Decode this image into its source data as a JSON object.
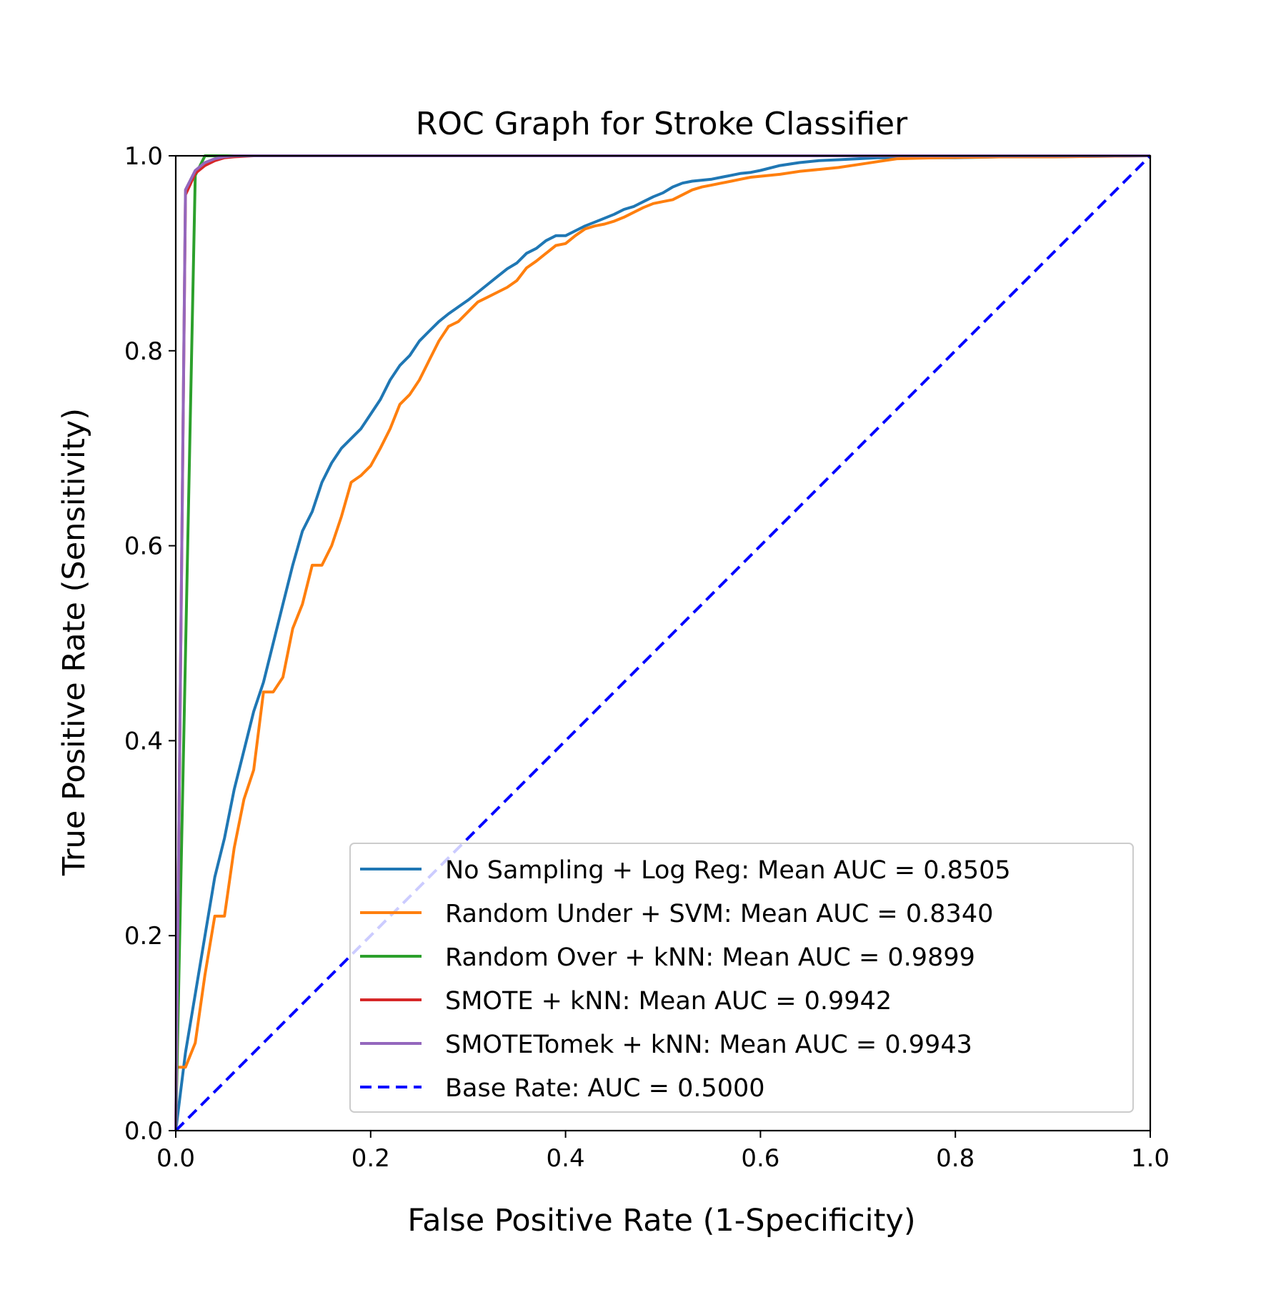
{
  "chart_data": {
    "type": "line",
    "title": "ROC Graph for Stroke Classifier",
    "xlabel": "False Positive Rate (1-Specificity)",
    "ylabel": "True Positive Rate (Sensitivity)",
    "xlim": [
      0.0,
      1.0
    ],
    "ylim": [
      0.0,
      1.0
    ],
    "xticks": [
      "0.0",
      "0.2",
      "0.4",
      "0.6",
      "0.8",
      "1.0"
    ],
    "yticks": [
      "0.0",
      "0.2",
      "0.4",
      "0.6",
      "0.8",
      "1.0"
    ],
    "grid": false,
    "legend_position": "lower-right",
    "series": [
      {
        "name": "No Sampling + Log Reg: Mean AUC = 0.8505",
        "color": "#1f77b4",
        "style": "solid",
        "x": [
          0.0,
          0.01,
          0.02,
          0.03,
          0.04,
          0.05,
          0.06,
          0.07,
          0.08,
          0.09,
          0.1,
          0.11,
          0.12,
          0.13,
          0.14,
          0.15,
          0.16,
          0.17,
          0.18,
          0.19,
          0.2,
          0.21,
          0.22,
          0.23,
          0.24,
          0.25,
          0.26,
          0.27,
          0.28,
          0.29,
          0.3,
          0.31,
          0.32,
          0.33,
          0.34,
          0.35,
          0.36,
          0.37,
          0.38,
          0.39,
          0.4,
          0.41,
          0.42,
          0.43,
          0.44,
          0.45,
          0.46,
          0.47,
          0.48,
          0.49,
          0.5,
          0.51,
          0.52,
          0.53,
          0.54,
          0.55,
          0.56,
          0.57,
          0.58,
          0.59,
          0.6,
          0.62,
          0.64,
          0.66,
          0.68,
          0.7,
          0.72,
          0.75,
          0.8,
          0.85,
          0.9,
          1.0
        ],
        "y": [
          0.0,
          0.08,
          0.14,
          0.2,
          0.26,
          0.3,
          0.35,
          0.39,
          0.43,
          0.46,
          0.5,
          0.54,
          0.58,
          0.615,
          0.635,
          0.665,
          0.685,
          0.7,
          0.71,
          0.72,
          0.735,
          0.75,
          0.77,
          0.785,
          0.795,
          0.81,
          0.82,
          0.83,
          0.838,
          0.845,
          0.852,
          0.86,
          0.868,
          0.876,
          0.884,
          0.89,
          0.9,
          0.905,
          0.913,
          0.918,
          0.918,
          0.923,
          0.928,
          0.932,
          0.936,
          0.94,
          0.945,
          0.948,
          0.953,
          0.958,
          0.962,
          0.968,
          0.972,
          0.974,
          0.975,
          0.976,
          0.978,
          0.98,
          0.982,
          0.983,
          0.985,
          0.99,
          0.993,
          0.995,
          0.996,
          0.997,
          0.998,
          0.998,
          0.998,
          0.999,
          0.999,
          1.0
        ]
      },
      {
        "name": "Random Under + SVM: Mean AUC = 0.8340",
        "color": "#ff7f0e",
        "style": "solid",
        "x": [
          0.0,
          0.01,
          0.02,
          0.03,
          0.04,
          0.05,
          0.06,
          0.07,
          0.08,
          0.09,
          0.1,
          0.11,
          0.12,
          0.13,
          0.14,
          0.15,
          0.16,
          0.17,
          0.18,
          0.19,
          0.2,
          0.21,
          0.22,
          0.23,
          0.24,
          0.25,
          0.26,
          0.27,
          0.28,
          0.29,
          0.3,
          0.31,
          0.32,
          0.33,
          0.34,
          0.35,
          0.36,
          0.37,
          0.38,
          0.39,
          0.4,
          0.41,
          0.42,
          0.43,
          0.44,
          0.45,
          0.46,
          0.47,
          0.48,
          0.49,
          0.5,
          0.51,
          0.52,
          0.53,
          0.54,
          0.55,
          0.56,
          0.57,
          0.58,
          0.59,
          0.6,
          0.62,
          0.64,
          0.66,
          0.68,
          0.7,
          0.72,
          0.74,
          0.78,
          0.85,
          0.9,
          1.0
        ],
        "y": [
          0.065,
          0.065,
          0.09,
          0.16,
          0.22,
          0.22,
          0.29,
          0.34,
          0.37,
          0.45,
          0.45,
          0.465,
          0.515,
          0.54,
          0.58,
          0.58,
          0.6,
          0.63,
          0.665,
          0.672,
          0.682,
          0.7,
          0.72,
          0.745,
          0.755,
          0.77,
          0.79,
          0.81,
          0.825,
          0.83,
          0.84,
          0.85,
          0.855,
          0.86,
          0.865,
          0.872,
          0.885,
          0.892,
          0.9,
          0.908,
          0.91,
          0.918,
          0.925,
          0.928,
          0.93,
          0.933,
          0.937,
          0.942,
          0.947,
          0.951,
          0.953,
          0.955,
          0.96,
          0.965,
          0.968,
          0.97,
          0.972,
          0.974,
          0.976,
          0.978,
          0.979,
          0.981,
          0.984,
          0.986,
          0.988,
          0.991,
          0.994,
          0.997,
          0.998,
          0.999,
          0.999,
          1.0
        ]
      },
      {
        "name": "Random Over + kNN: Mean AUC = 0.9899",
        "color": "#2ca02c",
        "style": "solid",
        "x": [
          0.0,
          0.02,
          0.03,
          1.0
        ],
        "y": [
          0.0,
          0.98,
          1.0,
          1.0
        ]
      },
      {
        "name": "SMOTE + kNN: Mean AUC = 0.9942",
        "color": "#d62728",
        "style": "solid",
        "x": [
          0.0,
          0.01,
          0.02,
          0.03,
          0.04,
          0.05,
          0.06,
          0.08,
          1.0
        ],
        "y": [
          0.0,
          0.96,
          0.982,
          0.99,
          0.995,
          0.998,
          0.999,
          1.0,
          1.0
        ]
      },
      {
        "name": "SMOTETomek + kNN: Mean AUC = 0.9943",
        "color": "#9467bd",
        "style": "solid",
        "x": [
          0.0,
          0.01,
          0.02,
          0.03,
          0.04,
          0.05,
          0.06,
          0.08,
          1.0
        ],
        "y": [
          0.0,
          0.965,
          0.985,
          0.993,
          0.997,
          0.999,
          1.0,
          1.0,
          1.0
        ]
      },
      {
        "name": "Base Rate: AUC = 0.5000",
        "color": "#0000ff",
        "style": "dashed",
        "x": [
          0.0,
          1.0
        ],
        "y": [
          0.0,
          1.0
        ]
      }
    ]
  }
}
